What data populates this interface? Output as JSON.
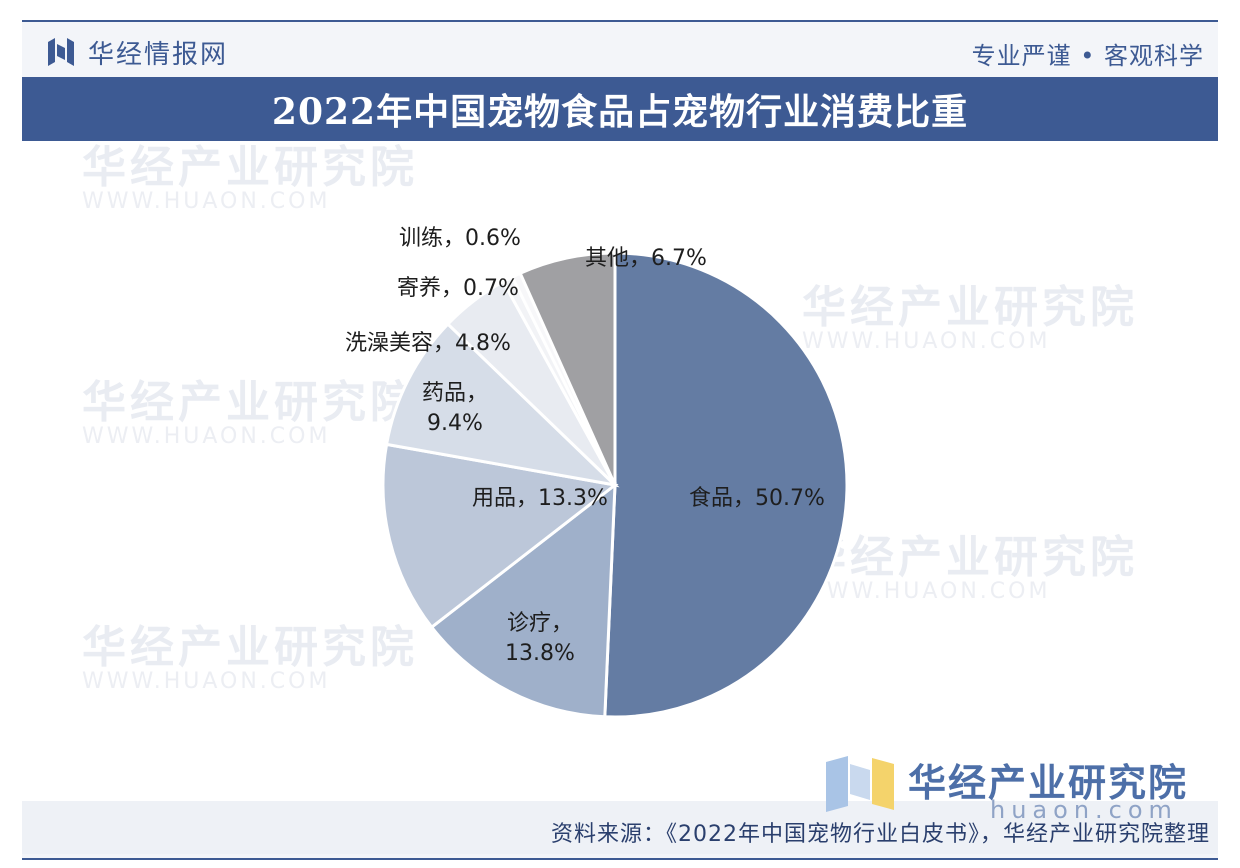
{
  "header": {
    "logo_text": "华经情报网",
    "slogan": "专业严谨 • 客观科学"
  },
  "title": "2022年中国宠物食品占宠物行业消费比重",
  "watermark": {
    "text": "华经产业研究院",
    "sub": "WWW.HUAON.COM"
  },
  "brand": {
    "name": "华经产业研究院",
    "url": "huaon.com"
  },
  "footer": {
    "source": "资料来源：《2022年中国宠物行业白皮书》，华经产业研究院整理"
  },
  "colors": {
    "primary": "#3d5a93",
    "food": "#647ca3",
    "medical": "#9fb0ca",
    "supplies": "#bcc7d9",
    "medicine": "#d6dde8",
    "grooming": "#e8ebf1",
    "boarding": "#f2f3f6",
    "training": "#f7f7f9",
    "other": "#a0a0a3"
  },
  "chart_data": {
    "type": "pie",
    "title": "2022年中国宠物食品占宠物行业消费比重",
    "unit": "%",
    "slices": [
      {
        "label": "食品",
        "value": 50.7,
        "text": "食品，50.7%"
      },
      {
        "label": "诊疗",
        "value": 13.8,
        "text_lines": [
          "诊疗，",
          "13.8%"
        ]
      },
      {
        "label": "用品",
        "value": 13.3,
        "text": "用品，13.3%"
      },
      {
        "label": "药品",
        "value": 9.4,
        "text_lines": [
          "药品，",
          "9.4%"
        ]
      },
      {
        "label": "洗澡美容",
        "value": 4.8,
        "text": "洗澡美容，4.8%"
      },
      {
        "label": "寄养",
        "value": 0.7,
        "text": "寄养，0.7%"
      },
      {
        "label": "训练",
        "value": 0.6,
        "text": "训练，0.6%"
      },
      {
        "label": "其他",
        "value": 6.7,
        "text": "其他，6.7%"
      }
    ]
  }
}
